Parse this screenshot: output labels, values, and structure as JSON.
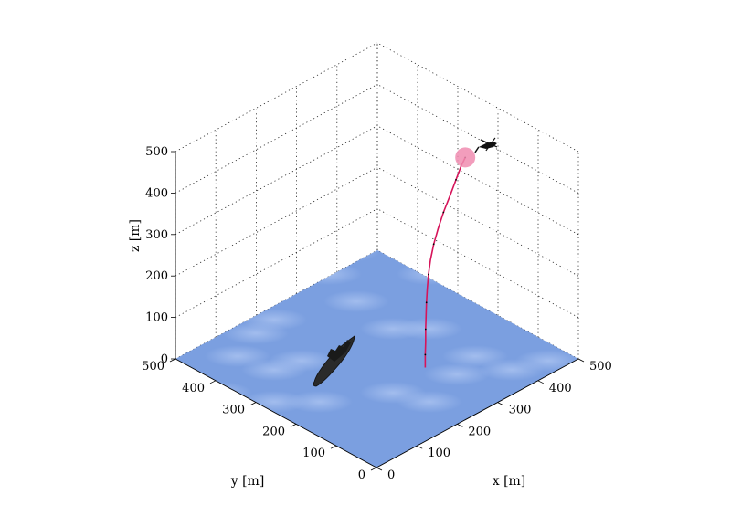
{
  "chart_data": {
    "type": "3d-line",
    "xlabel": "x [m]",
    "ylabel": "y [m]",
    "zlabel": "z [m]",
    "xlim": [
      0,
      500
    ],
    "ylim": [
      0,
      500
    ],
    "zlim": [
      0,
      500
    ],
    "x_ticks": [
      "0",
      "100",
      "200",
      "300",
      "400",
      "500"
    ],
    "y_ticks": [
      "0",
      "100",
      "200",
      "300",
      "400",
      "500"
    ],
    "z_ticks": [
      "0",
      "100",
      "200",
      "300",
      "400",
      "500"
    ],
    "grid": true,
    "surface": "sea",
    "series": [
      {
        "points": [
          [
            290,
            170,
            0
          ],
          [
            291,
            171,
            30
          ],
          [
            292,
            171,
            60
          ],
          [
            293,
            172,
            90
          ],
          [
            295,
            173,
            120
          ],
          [
            298,
            175,
            150
          ],
          [
            302,
            177,
            180
          ],
          [
            308,
            180,
            210
          ],
          [
            316,
            183,
            240
          ],
          [
            327,
            186,
            270
          ],
          [
            340,
            188,
            300
          ],
          [
            355,
            190,
            330
          ],
          [
            372,
            191,
            360
          ],
          [
            388,
            192,
            390
          ],
          [
            400,
            192,
            415
          ],
          [
            410,
            191,
            433
          ]
        ]
      }
    ],
    "objects": [
      {
        "name": "ship",
        "position": [
          150,
          320,
          0
        ]
      },
      {
        "name": "target-sphere",
        "position": [
          410,
          191,
          433
        ]
      },
      {
        "name": "helicopter",
        "position": [
          450,
          175,
          450
        ]
      }
    ],
    "colors": {
      "trajectory": "#d6145a",
      "sphere": "#f08cb0",
      "sea": "#7b9fe0",
      "ship": "#2a2a2a"
    }
  }
}
